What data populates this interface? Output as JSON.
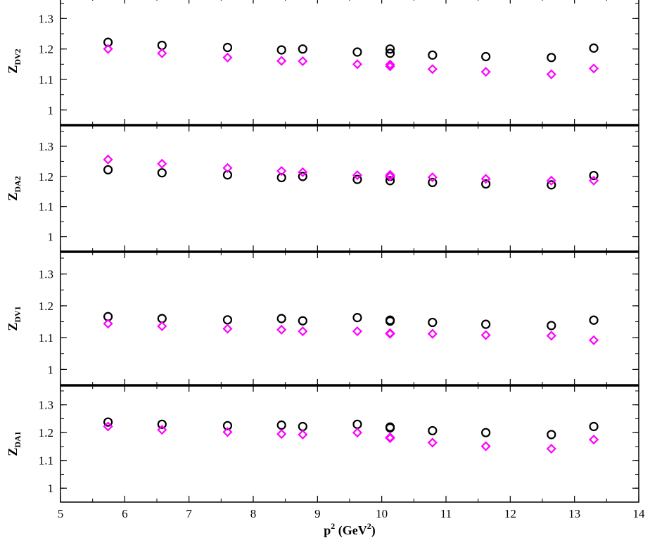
{
  "chart_data": {
    "type": "scatter",
    "x_axis": {
      "label_main": "p",
      "label_sup": "2",
      "label_unit_prefix": " (GeV",
      "label_unit_sup": "2",
      "label_unit_suffix": ")",
      "range": [
        5,
        14
      ],
      "ticks": [
        5,
        6,
        7,
        8,
        9,
        10,
        11,
        12,
        13,
        14
      ],
      "tick_labels": [
        "5",
        "6",
        "7",
        "8",
        "9",
        "10",
        "11",
        "12",
        "13",
        "14"
      ]
    },
    "x": [
      5.74,
      6.58,
      7.6,
      8.44,
      8.77,
      9.62,
      10.13,
      10.13,
      10.79,
      11.62,
      12.64,
      13.3
    ],
    "series_styles": [
      {
        "marker": "circle",
        "color": "#000000"
      },
      {
        "marker": "diamond",
        "color": "#ff00ff"
      }
    ],
    "panels": [
      {
        "ylabel_main": "Z",
        "ylabel_sub": "DV2",
        "ylim": [
          0.95,
          1.37
        ],
        "yticks": [
          1,
          1.1,
          1.2,
          1.3
        ],
        "ytick_labels": [
          "1",
          "1.1",
          "1.2",
          "1.3"
        ],
        "series": [
          {
            "values": [
              1.222,
              1.212,
              1.205,
              1.197,
              1.2,
              1.19,
              1.2,
              1.186,
              1.18,
              1.175,
              1.172,
              1.203
            ]
          },
          {
            "values": [
              1.2,
              1.186,
              1.172,
              1.161,
              1.16,
              1.15,
              1.149,
              1.143,
              1.134,
              1.125,
              1.117,
              1.136
            ]
          }
        ]
      },
      {
        "ylabel_main": "Z",
        "ylabel_sub": "DA2",
        "ylim": [
          0.95,
          1.37
        ],
        "yticks": [
          1,
          1.1,
          1.2,
          1.3
        ],
        "ytick_labels": [
          "1",
          "1.1",
          "1.2",
          "1.3"
        ],
        "series": [
          {
            "values": [
              1.222,
              1.212,
              1.205,
              1.196,
              1.2,
              1.19,
              1.186,
              1.2,
              1.18,
              1.175,
              1.172,
              1.203
            ]
          },
          {
            "values": [
              1.256,
              1.242,
              1.228,
              1.218,
              1.214,
              1.204,
              1.2,
              1.205,
              1.197,
              1.192,
              1.186,
              1.186
            ]
          }
        ]
      },
      {
        "ylabel_main": "Z",
        "ylabel_sub": "DV1",
        "ylim": [
          0.95,
          1.37
        ],
        "yticks": [
          1,
          1.1,
          1.2,
          1.3
        ],
        "ytick_labels": [
          "1",
          "1.1",
          "1.2",
          "1.3"
        ],
        "series": [
          {
            "values": [
              1.166,
              1.16,
              1.156,
              1.16,
              1.153,
              1.163,
              1.155,
              1.152,
              1.148,
              1.142,
              1.138,
              1.155
            ]
          },
          {
            "values": [
              1.144,
              1.136,
              1.128,
              1.125,
              1.12,
              1.12,
              1.114,
              1.112,
              1.112,
              1.108,
              1.106,
              1.092
            ]
          }
        ]
      },
      {
        "ylabel_main": "Z",
        "ylabel_sub": "DA1",
        "ylim": [
          0.95,
          1.37
        ],
        "yticks": [
          1,
          1.1,
          1.2,
          1.3
        ],
        "ytick_labels": [
          "1",
          "1.1",
          "1.2",
          "1.3"
        ],
        "series": [
          {
            "values": [
              1.238,
              1.23,
              1.225,
              1.227,
              1.222,
              1.23,
              1.22,
              1.217,
              1.207,
              1.2,
              1.193,
              1.222
            ]
          },
          {
            "values": [
              1.222,
              1.21,
              1.202,
              1.195,
              1.193,
              1.2,
              1.183,
              1.18,
              1.164,
              1.151,
              1.142,
              1.175
            ]
          }
        ]
      }
    ]
  }
}
